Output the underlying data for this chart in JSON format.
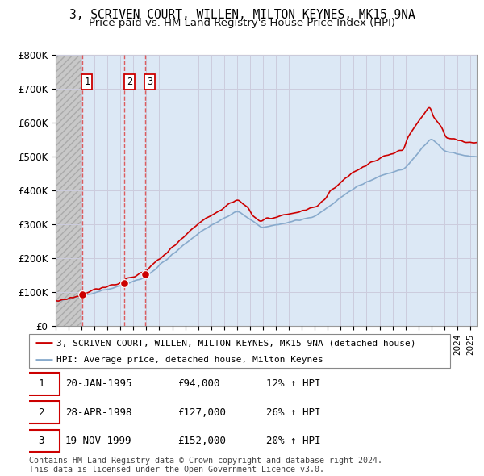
{
  "title": "3, SCRIVEN COURT, WILLEN, MILTON KEYNES, MK15 9NA",
  "subtitle": "Price paid vs. HM Land Registry's House Price Index (HPI)",
  "ylim": [
    0,
    800000
  ],
  "yticks": [
    0,
    100000,
    200000,
    300000,
    400000,
    500000,
    600000,
    700000,
    800000
  ],
  "ytick_labels": [
    "£0",
    "£100K",
    "£200K",
    "£300K",
    "£400K",
    "£500K",
    "£600K",
    "£700K",
    "£800K"
  ],
  "grid_color": "#ccccdd",
  "background_color": "#ffffff",
  "plot_bg_color": "#dce8f5",
  "hatch_color": "#bbbbbb",
  "hatch_bg_color": "#d0d0d0",
  "red_line_color": "#cc0000",
  "blue_line_color": "#88aacc",
  "marker_color": "#cc0000",
  "vline_color": "#dd4444",
  "purchases": [
    {
      "label": "1",
      "date_num": 1995.05,
      "price": 94000,
      "pct": "12%",
      "date_str": "20-JAN-1995"
    },
    {
      "label": "2",
      "date_num": 1998.32,
      "price": 127000,
      "pct": "26%",
      "date_str": "28-APR-1998"
    },
    {
      "label": "3",
      "date_num": 1999.89,
      "price": 152000,
      "pct": "20%",
      "date_str": "19-NOV-1999"
    }
  ],
  "legend_entry1": "3, SCRIVEN COURT, WILLEN, MILTON KEYNES, MK15 9NA (detached house)",
  "legend_entry2": "HPI: Average price, detached house, Milton Keynes",
  "footer1": "Contains HM Land Registry data © Crown copyright and database right 2024.",
  "footer2": "This data is licensed under the Open Government Licence v3.0.",
  "title_fontsize": 10.5,
  "subtitle_fontsize": 9.5,
  "xmin": 1993,
  "xmax": 2025.5,
  "hatch_end": 1995.0
}
